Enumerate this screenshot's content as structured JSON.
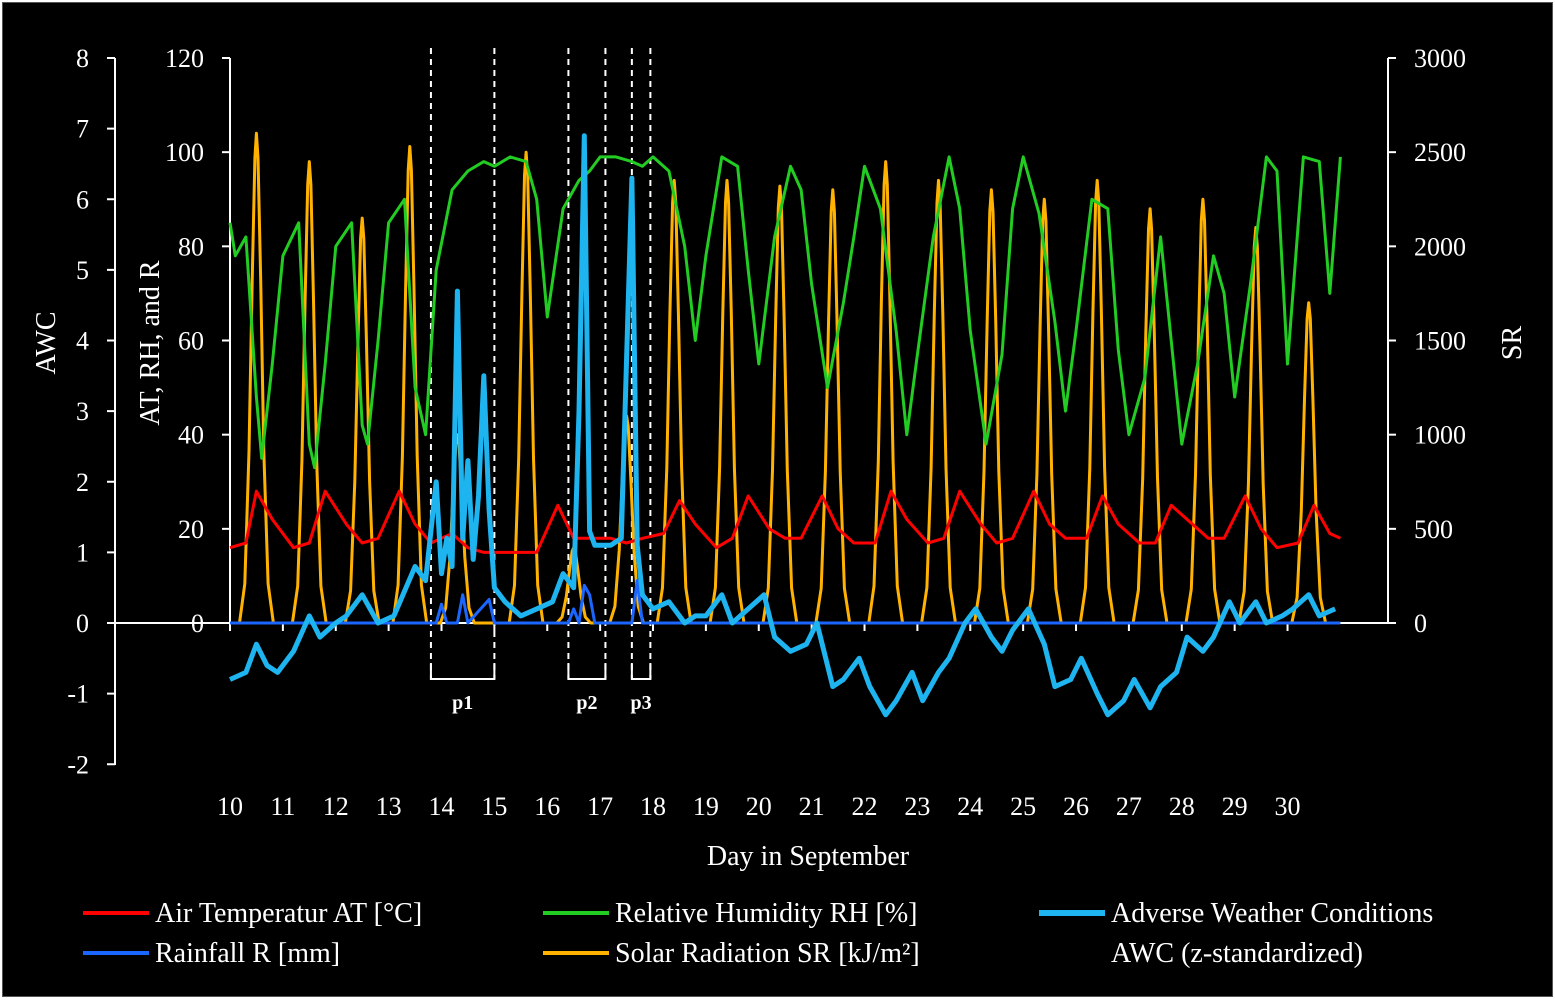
{
  "chart_data": {
    "type": "line",
    "xlabel": "Day in September",
    "left_axis": {
      "label": "AWC",
      "ylim": [
        -2,
        8
      ],
      "ticks": [
        "-2",
        "-1",
        "0",
        "1",
        "2",
        "3",
        "4",
        "5",
        "6",
        "7",
        "8"
      ]
    },
    "mid_axis": {
      "label": "AT, RH, and R",
      "ylim": [
        0,
        120
      ],
      "ticks": [
        "0",
        "20",
        "40",
        "60",
        "80",
        "100",
        "120"
      ]
    },
    "right_axis": {
      "label": "SR",
      "ylim": [
        0,
        3000
      ],
      "ticks": [
        "0",
        "500",
        "1000",
        "1500",
        "2000",
        "2500",
        "3000"
      ]
    },
    "x_ticks": [
      "10",
      "11",
      "12",
      "13",
      "14",
      "15",
      "16",
      "17",
      "18",
      "19",
      "20",
      "21",
      "22",
      "23",
      "24",
      "25",
      "26",
      "27",
      "28",
      "29",
      "30"
    ],
    "xlim": [
      10,
      31.9
    ],
    "grid": false,
    "legend_placement": "bottom",
    "periods": [
      {
        "label": "p1",
        "start": 13.8,
        "end": 15.0
      },
      {
        "label": "p2",
        "start": 16.4,
        "end": 17.1
      },
      {
        "label": "p3",
        "start": 17.6,
        "end": 17.95
      }
    ],
    "series": [
      {
        "name": "Air Temperatur AT [°C]",
        "color": "#ff0000",
        "axis": "mid",
        "x": [
          10,
          10.3,
          10.5,
          10.8,
          11.2,
          11.5,
          11.8,
          12.2,
          12.5,
          12.8,
          13.2,
          13.5,
          13.8,
          14.2,
          14.5,
          14.8,
          15.2,
          15.5,
          15.8,
          16.2,
          16.5,
          16.8,
          17.2,
          17.5,
          17.8,
          18.2,
          18.5,
          18.8,
          19.2,
          19.5,
          19.8,
          20.2,
          20.5,
          20.8,
          21.2,
          21.5,
          21.8,
          22.2,
          22.5,
          22.8,
          23.2,
          23.5,
          23.8,
          24.2,
          24.5,
          24.8,
          25.2,
          25.5,
          25.8,
          26.2,
          26.5,
          26.8,
          27.2,
          27.5,
          27.8,
          28.2,
          28.5,
          28.8,
          29.2,
          29.5,
          29.8,
          30.2,
          30.5,
          30.8,
          31
        ],
        "y": [
          16,
          17,
          28,
          22,
          16,
          17,
          28,
          21,
          17,
          18,
          28,
          21,
          17,
          19,
          16,
          15,
          15,
          15,
          15,
          25,
          18,
          18,
          18,
          17,
          18,
          19,
          26,
          21,
          16,
          18,
          27,
          20,
          18,
          18,
          27,
          20,
          17,
          17,
          28,
          22,
          17,
          18,
          28,
          21,
          17,
          18,
          28,
          21,
          18,
          18,
          27,
          21,
          17,
          17,
          25,
          21,
          18,
          18,
          27,
          20,
          16,
          17,
          25,
          19,
          18
        ]
      },
      {
        "name": "Relative Humidity RH [%]",
        "color": "#22cc22",
        "axis": "mid",
        "x": [
          10,
          10.1,
          10.3,
          10.5,
          10.6,
          10.8,
          11,
          11.3,
          11.5,
          11.6,
          11.8,
          12,
          12.3,
          12.5,
          12.6,
          12.8,
          13,
          13.3,
          13.5,
          13.7,
          13.9,
          14.2,
          14.5,
          14.8,
          15,
          15.3,
          15.6,
          15.8,
          16,
          16.3,
          16.6,
          16.8,
          17,
          17.3,
          17.6,
          17.8,
          18,
          18.3,
          18.6,
          18.8,
          19,
          19.3,
          19.6,
          19.8,
          20,
          20.3,
          20.6,
          20.8,
          21,
          21.3,
          21.6,
          21.8,
          22,
          22.3,
          22.6,
          22.8,
          23,
          23.3,
          23.6,
          23.8,
          24,
          24.3,
          24.6,
          24.8,
          25,
          25.3,
          25.6,
          25.8,
          26,
          26.3,
          26.6,
          26.8,
          27,
          27.3,
          27.6,
          27.8,
          28,
          28.3,
          28.6,
          28.8,
          29,
          29.3,
          29.6,
          29.8,
          30,
          30.3,
          30.6,
          30.8,
          31
        ],
        "y": [
          85,
          78,
          82,
          48,
          35,
          55,
          78,
          85,
          38,
          33,
          55,
          80,
          85,
          42,
          38,
          60,
          85,
          90,
          50,
          40,
          75,
          92,
          96,
          98,
          97,
          99,
          98,
          90,
          65,
          88,
          94,
          96,
          99,
          99,
          98,
          97,
          99,
          96,
          80,
          60,
          78,
          99,
          97,
          75,
          55,
          82,
          97,
          92,
          72,
          50,
          68,
          82,
          97,
          88,
          62,
          40,
          57,
          82,
          99,
          88,
          62,
          38,
          57,
          88,
          99,
          87,
          64,
          45,
          62,
          90,
          88,
          58,
          40,
          52,
          82,
          60,
          38,
          55,
          78,
          70,
          48,
          72,
          99,
          96,
          55,
          99,
          98,
          70,
          99
        ],
        "_note": ""
      },
      {
        "name": "Rainfall R [mm]",
        "color": "#1a66ff",
        "axis": "mid",
        "x": [
          10,
          13.9,
          14.0,
          14.1,
          14.3,
          14.4,
          14.5,
          14.9,
          15.0,
          16.4,
          16.5,
          16.6,
          16.7,
          16.8,
          16.9,
          17.0,
          17.6,
          17.7,
          17.8,
          18.0,
          31
        ],
        "y": [
          0,
          0,
          4,
          0,
          0,
          6,
          0,
          5,
          0,
          0,
          3,
          0,
          8,
          6,
          0,
          0,
          0,
          9,
          0,
          0,
          0
        ]
      },
      {
        "name": "Solar Radiation SR [kJ/m²]",
        "color": "#ffb300",
        "axis": "right",
        "peaks_x": [
          10.5,
          11.5,
          12.5,
          13.4,
          14.3,
          15.6,
          16.5,
          17.5,
          18.4,
          19.4,
          20.4,
          21.4,
          22.4,
          23.4,
          24.4,
          25.4,
          26.4,
          27.4,
          28.4,
          29.4,
          30.4
        ],
        "peaks_y": [
          2600,
          2450,
          2150,
          2530,
          1000,
          2500,
          400,
          1100,
          2350,
          2350,
          2320,
          2300,
          2450,
          2350,
          2300,
          2250,
          2350,
          2200,
          2250,
          2100,
          1700
        ],
        "trough_y": 0
      },
      {
        "name": "Adverse Weather Conditions AWC (z-standardized)",
        "color": "#1eb4f0",
        "axis": "left",
        "x": [
          10,
          10.3,
          10.5,
          10.7,
          10.9,
          11.2,
          11.5,
          11.7,
          12,
          12.2,
          12.5,
          12.8,
          13.1,
          13.5,
          13.7,
          13.9,
          14.0,
          14.1,
          14.2,
          14.3,
          14.4,
          14.5,
          14.6,
          14.7,
          14.8,
          14.9,
          15,
          15.2,
          15.5,
          15.8,
          16.1,
          16.3,
          16.5,
          16.6,
          16.7,
          16.8,
          16.9,
          17.0,
          17.2,
          17.4,
          17.6,
          17.7,
          17.8,
          17.9,
          18.0,
          18.3,
          18.6,
          18.8,
          19.0,
          19.3,
          19.5,
          19.8,
          20.1,
          20.3,
          20.6,
          20.9,
          21.1,
          21.4,
          21.6,
          21.9,
          22.1,
          22.4,
          22.6,
          22.9,
          23.1,
          23.4,
          23.6,
          23.9,
          24.1,
          24.4,
          24.6,
          24.8,
          25.1,
          25.4,
          25.6,
          25.9,
          26.1,
          26.4,
          26.6,
          26.9,
          27.1,
          27.4,
          27.6,
          27.9,
          28.1,
          28.4,
          28.6,
          28.9,
          29.1,
          29.4,
          29.6,
          29.9,
          30.1,
          30.4,
          30.6,
          30.9
        ],
        "y": [
          -0.8,
          -0.7,
          -0.3,
          -0.6,
          -0.7,
          -0.4,
          0.1,
          -0.2,
          0.0,
          0.1,
          0.4,
          0.0,
          0.1,
          0.8,
          0.6,
          2.0,
          0.7,
          1.2,
          0.8,
          4.7,
          1.2,
          2.3,
          0.9,
          1.8,
          3.5,
          1.6,
          0.5,
          0.3,
          0.1,
          0.2,
          0.3,
          0.7,
          0.5,
          3.0,
          6.9,
          1.3,
          1.1,
          1.1,
          1.1,
          1.2,
          6.3,
          1.1,
          0.4,
          0.3,
          0.2,
          0.3,
          0.0,
          0.1,
          0.1,
          0.4,
          0.0,
          0.2,
          0.4,
          -0.2,
          -0.4,
          -0.3,
          0.0,
          -0.9,
          -0.8,
          -0.5,
          -0.9,
          -1.3,
          -1.1,
          -0.7,
          -1.1,
          -0.7,
          -0.5,
          0.0,
          0.2,
          -0.2,
          -0.4,
          -0.1,
          0.2,
          -0.3,
          -0.9,
          -0.8,
          -0.5,
          -1.0,
          -1.3,
          -1.1,
          -0.8,
          -1.2,
          -0.9,
          -0.7,
          -0.2,
          -0.4,
          -0.2,
          0.3,
          0.0,
          0.3,
          0.0,
          0.1,
          0.2,
          0.4,
          0.1,
          0.2
        ]
      }
    ]
  },
  "legend": [
    {
      "label": "Air Temperatur AT [°C]",
      "color": "#ff0000"
    },
    {
      "label": "Relative Humidity RH [%]",
      "color": "#22cc22"
    },
    {
      "label": "Adverse Weather Conditions",
      "label2": "AWC (z-standardized)",
      "color": "#1eb4f0"
    },
    {
      "label": "Rainfall R [mm]",
      "color": "#1a66ff"
    },
    {
      "label": "Solar Radiation SR [kJ/m²]",
      "color": "#ffb300"
    }
  ]
}
